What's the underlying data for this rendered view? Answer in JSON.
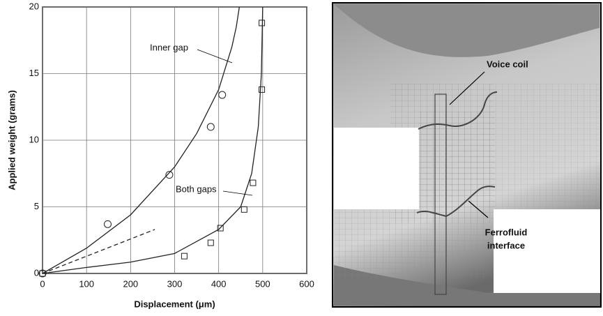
{
  "chart_data": {
    "type": "scatter",
    "xlabel": "Displacement (μm)",
    "ylabel": "Applied weight (grams)",
    "xlim": [
      0,
      600
    ],
    "ylim": [
      0,
      20
    ],
    "xticks": [
      0,
      100,
      200,
      300,
      400,
      500,
      600
    ],
    "yticks": [
      0,
      5,
      10,
      15,
      20
    ],
    "grid": true,
    "series": [
      {
        "style": "circle",
        "color": "#222",
        "x": [
          0,
          148,
          288,
          382,
          408
        ],
        "values": [
          0,
          3.7,
          7.4,
          11,
          13.4
        ]
      },
      {
        "style": "square",
        "color": "#222",
        "x": [
          0,
          322,
          382,
          404,
          458,
          478,
          498,
          498
        ],
        "values": [
          0,
          1.3,
          2.3,
          3.4,
          4.8,
          6.8,
          13.8,
          18.8
        ]
      },
      {
        "name": "Inner gap",
        "style": "line",
        "color": "#222",
        "x": [
          0,
          100,
          200,
          300,
          350,
          400,
          430,
          440,
          447
        ],
        "values": [
          0,
          1.9,
          4.4,
          8,
          10.5,
          13.8,
          17,
          18.5,
          20
        ]
      },
      {
        "name": "Both gaps",
        "style": "line",
        "color": "#222",
        "x": [
          0,
          100,
          200,
          300,
          400,
          450,
          475,
          490,
          497,
          500
        ],
        "values": [
          0,
          0.45,
          0.85,
          1.5,
          3.3,
          5,
          7.5,
          11,
          15,
          20
        ]
      },
      {
        "style": "dash",
        "color": "#222",
        "x": [
          0,
          255
        ],
        "values": [
          0,
          3.3
        ]
      }
    ]
  },
  "image": {
    "labels": [
      "Voice coil",
      "Ferrofluid",
      "interface"
    ]
  }
}
